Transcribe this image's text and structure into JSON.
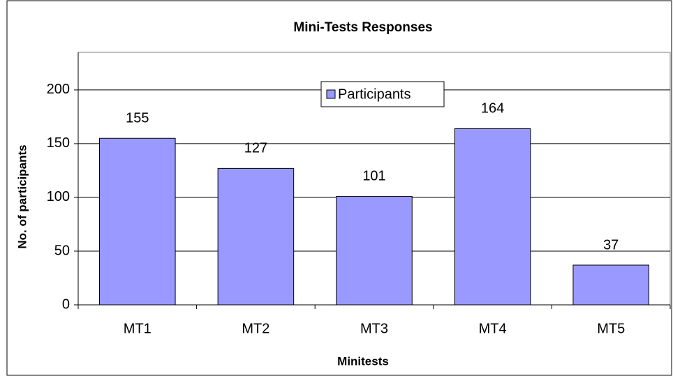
{
  "chart_data": {
    "type": "bar",
    "title": "Mini-Tests Responses",
    "x_label": "Minitests",
    "y_label": "No. of participants",
    "categories": [
      "MT1",
      "MT2",
      "MT3",
      "MT4",
      "MT5"
    ],
    "series": [
      {
        "name": "Participants",
        "color": "#9999ff",
        "values": [
          155,
          127,
          101,
          164,
          37
        ]
      }
    ],
    "ylim": [
      0,
      235
    ],
    "yticks": [
      0,
      50,
      100,
      150,
      200
    ],
    "grid": true,
    "legend": "top",
    "data_labels": true
  }
}
